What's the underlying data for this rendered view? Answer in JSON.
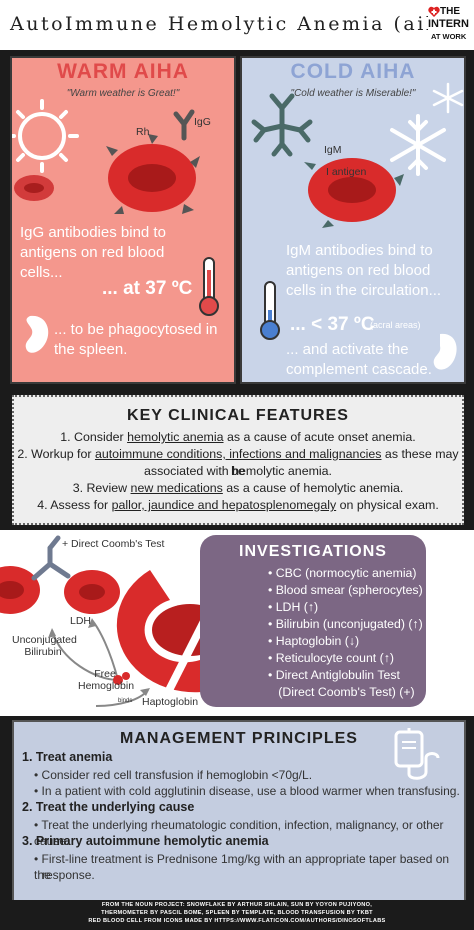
{
  "header": {
    "title": "AutoImmune Hemolytic Anemia (aiha)",
    "logo_line1": "THE",
    "logo_line2": "INTERN",
    "logo_line3": "AT WORK"
  },
  "warm": {
    "heading": "WARM AIHA",
    "quote": "\"Warm weather is Great!\"",
    "label_rh": "Rh",
    "label_igg": "IgG",
    "text1": "IgG antibodies bind to antigens on red blood cells...",
    "temp": "... at 37 ºC",
    "text2": "... to be phagocytosed in the spleen.",
    "colors": {
      "bg": "#f4978d",
      "accent": "#e04a4a"
    }
  },
  "cold": {
    "heading": "COLD AIHA",
    "quote": "\"Cold weather is Miserable!\"",
    "label_igm": "IgM",
    "label_iantigen": "I antigen",
    "text1": "IgM antibodies bind to antigens on red blood cells in the circulation...",
    "temp": "... < 37 ºC",
    "temp_note": "(acral areas)",
    "text2": "... and activate the complement cascade.",
    "colors": {
      "bg": "#c9d4e8",
      "accent": "#4a7fd0"
    }
  },
  "key_clinical": {
    "title": "KEY CLINICAL FEATURES",
    "item1_pre": "1. Consider ",
    "item1_u": "hemolytic anemia",
    "item1_post": " as a cause of acute onset anemia.",
    "item2_pre": "2. Workup for ",
    "item2_u": "autoimmune conditions, infections and malignancies",
    "item2_post": " as these may be",
    "item2_line2": "associated with hemolytic anemia.",
    "item3_pre": "3. Review ",
    "item3_u": "new medications",
    "item3_post": " as a cause of hemolytic anemia.",
    "item4_pre": "4. Assess for ",
    "item4_u": "pallor, jaundice and hepatosplenomegaly",
    "item4_post": " on physical exam."
  },
  "diagram": {
    "coombs": "+ Direct Coomb's Test",
    "ldh": "LDH",
    "unconj": "Unconjugated Bilirubin",
    "free_hb": "Free Hemoglobin",
    "hapto": "Haptoglobin",
    "binds": "binds"
  },
  "investigations": {
    "title": "INVESTIGATIONS",
    "items": [
      "• CBC (normocytic anemia)",
      "• Blood smear (spherocytes)",
      "• LDH (↑)",
      "• Bilirubin (unconjugated) (↑)",
      "• Haptoglobin (↓)",
      "• Reticulocyte count (↑)",
      "• Direct Antiglobulin Test",
      "   (Direct Coomb's Test) (+)"
    ]
  },
  "management": {
    "title": "MANAGEMENT PRINCIPLES",
    "h1": "1. Treat anemia",
    "i1a": "• Consider red cell transfusion if hemoglobin <70g/L.",
    "i1b": "• In a patient with cold agglutinin disease, use a blood warmer when transfusing.",
    "h2": "2. Treat the underlying cause",
    "i2a": "• Treat the underlying rheumatologic condition, infection, malignancy, or other cause.",
    "h3": "3. Primary autoimmune hemolytic anemia",
    "i3a": "• First-line treatment is Prednisone 1mg/kg with an appropriate taper based on the",
    "i3b": "response."
  },
  "footer": {
    "line1": "FROM THE NOUN PROJECT: SNOWFLAKE BY ARTHUR SHLAIN, SUN BY YOYON PUJIYONO,",
    "line2": "THERMOMETER BY PASCIL BOME, SPLEEN BY TEMPLATE, BLOOD TRANSFUSION BY TKBT",
    "line3": "RED BLOOD CELL FROM ICONS MADE BY HTTPS://WWW.FLATICON.COM/AUTHORS/DINOSOFTLABS"
  }
}
